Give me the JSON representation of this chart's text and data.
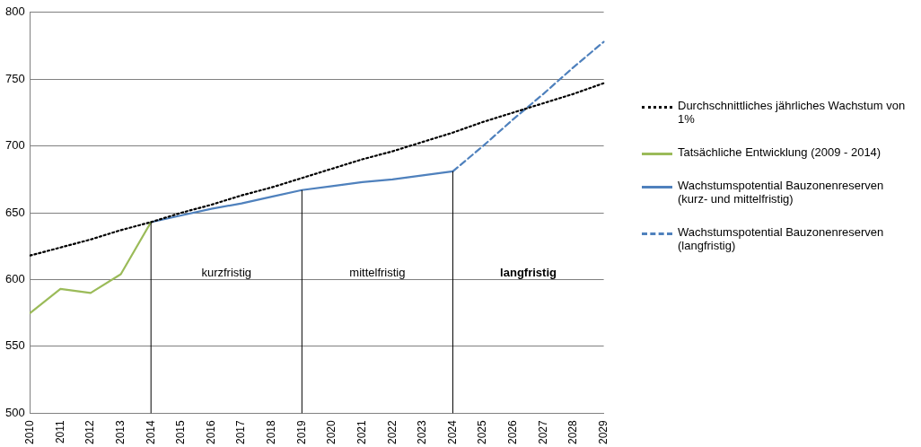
{
  "chart_data": {
    "type": "line",
    "categories": [
      "2010",
      "2011",
      "2012",
      "2013",
      "2014",
      "2015",
      "2016",
      "2017",
      "2018",
      "2019",
      "2020",
      "2021",
      "2022",
      "2023",
      "2024",
      "2025",
      "2026",
      "2027",
      "2028",
      "2029"
    ],
    "series": [
      {
        "name": "Durchschnittliches jährliches Wachstum von 1%",
        "color": "#000000",
        "line_style": "dotted",
        "values": [
          618,
          624,
          630,
          637,
          643,
          650,
          656,
          663,
          669,
          676,
          683,
          690,
          696,
          703,
          710,
          718,
          725,
          732,
          739,
          747
        ]
      },
      {
        "name": "Tatsächliche Entwicklung (2009 - 2014)",
        "color": "#9bbb59",
        "line_style": "solid",
        "values": [
          575,
          593,
          590,
          604,
          643,
          null,
          null,
          null,
          null,
          null,
          null,
          null,
          null,
          null,
          null,
          null,
          null,
          null,
          null,
          null
        ]
      },
      {
        "name": "Wachstumspotential Bauzonenreserven (kurz- und mittelfristig)",
        "color": "#4f81bd",
        "line_style": "solid",
        "values": [
          null,
          null,
          null,
          null,
          643,
          648,
          653,
          657,
          662,
          667,
          670,
          673,
          675,
          678,
          681,
          null,
          null,
          null,
          null,
          null
        ]
      },
      {
        "name": "Wachstumspotential Bauzonenreserven (langfristig)",
        "color": "#4f81bd",
        "line_style": "dashed",
        "values": [
          null,
          null,
          null,
          null,
          null,
          null,
          null,
          null,
          null,
          null,
          null,
          null,
          null,
          null,
          681,
          700,
          720,
          739,
          759,
          778
        ]
      }
    ],
    "ylim": [
      500,
      800
    ],
    "yticks": [
      500,
      550,
      600,
      650,
      700,
      750,
      800
    ],
    "grid": "y",
    "legend": "right",
    "marker": "none",
    "ref_lines": [
      {
        "axis": "x",
        "value": "2014",
        "color": "#000000"
      },
      {
        "axis": "x",
        "value": "2019",
        "color": "#000000"
      },
      {
        "axis": "x",
        "value": "2024",
        "color": "#000000"
      }
    ],
    "annotations": [
      "kurzfristig",
      "mittelfristig",
      "langfristig"
    ]
  }
}
